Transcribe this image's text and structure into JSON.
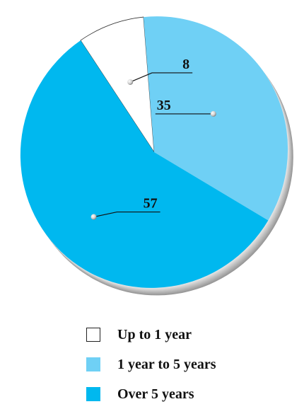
{
  "chart_data": {
    "type": "pie",
    "categories": [
      "Up to 1 year",
      "1 year to 5 years",
      "Over 5 years"
    ],
    "values": [
      8,
      35,
      57
    ],
    "data_labels": [
      "8",
      "35",
      "57"
    ],
    "colors": [
      "#ffffff",
      "#6fd0f5",
      "#00b8ef"
    ],
    "legend_position": "bottom",
    "style": "3d-tilted"
  },
  "legend": {
    "items": [
      {
        "label": "Up to 1 year",
        "color": "#ffffff"
      },
      {
        "label": "1 year to 5 years",
        "color": "#6fd0f5"
      },
      {
        "label": "Over 5 years",
        "color": "#00b8ef"
      }
    ]
  }
}
